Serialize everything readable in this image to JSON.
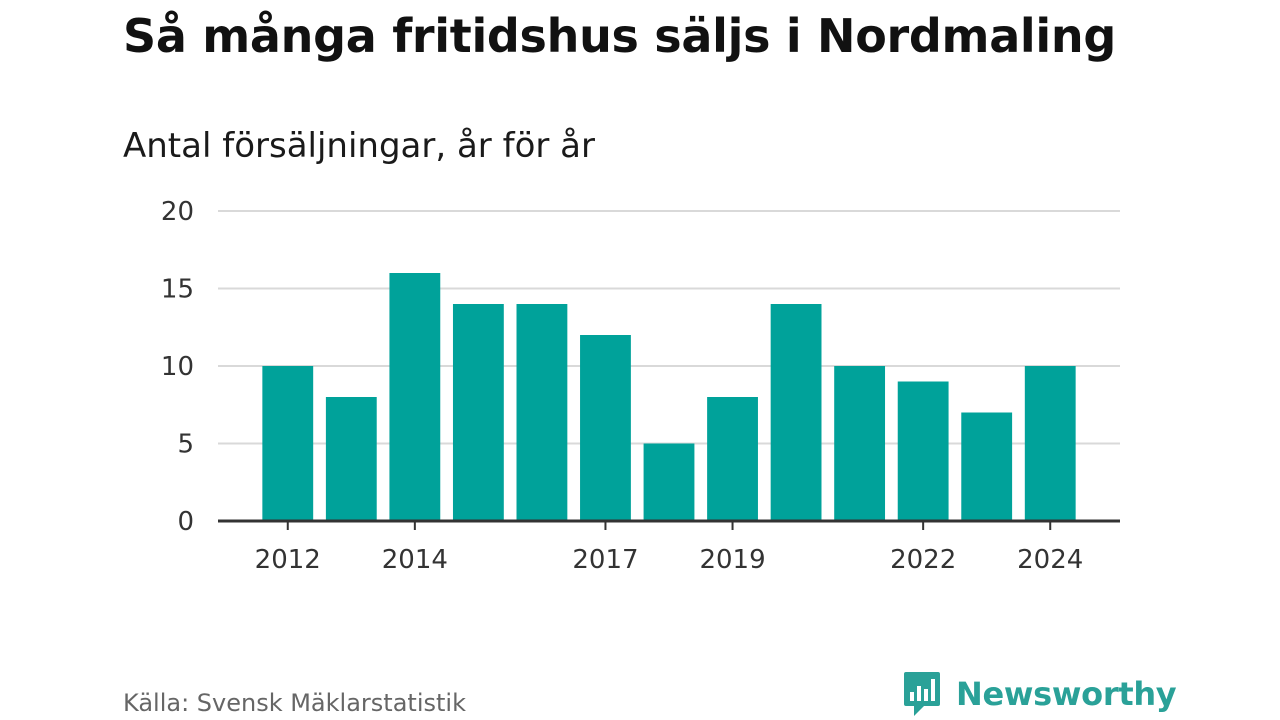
{
  "header": {
    "title": "Så många fritidshus säljs i Nordmaling",
    "subtitle": "Antal försäljningar, år för år"
  },
  "footer": {
    "source": "Källa: Svensk Mäklarstatistik",
    "brand": "Newsworthy"
  },
  "colors": {
    "bar": "#00a29a",
    "grid": "#d9d9d9",
    "axis": "#333333",
    "brand": "#2aa198"
  },
  "chart_data": {
    "type": "bar",
    "categories": [
      "2012",
      "2013",
      "2014",
      "2015",
      "2016",
      "2017",
      "2018",
      "2019",
      "2020",
      "2021",
      "2022",
      "2023",
      "2024"
    ],
    "values": [
      10,
      8,
      16,
      14,
      14,
      12,
      5,
      8,
      14,
      10,
      9,
      7,
      10
    ],
    "x_tick_labels": [
      "2012",
      "2014",
      "2017",
      "2019",
      "2022",
      "2024"
    ],
    "y_ticks": [
      0,
      5,
      10,
      15,
      20
    ],
    "ylim": [
      0,
      20
    ],
    "grid": true,
    "title": "Så många fritidshus säljs i Nordmaling",
    "subtitle": "Antal försäljningar, år för år",
    "xlabel": "",
    "ylabel": ""
  }
}
